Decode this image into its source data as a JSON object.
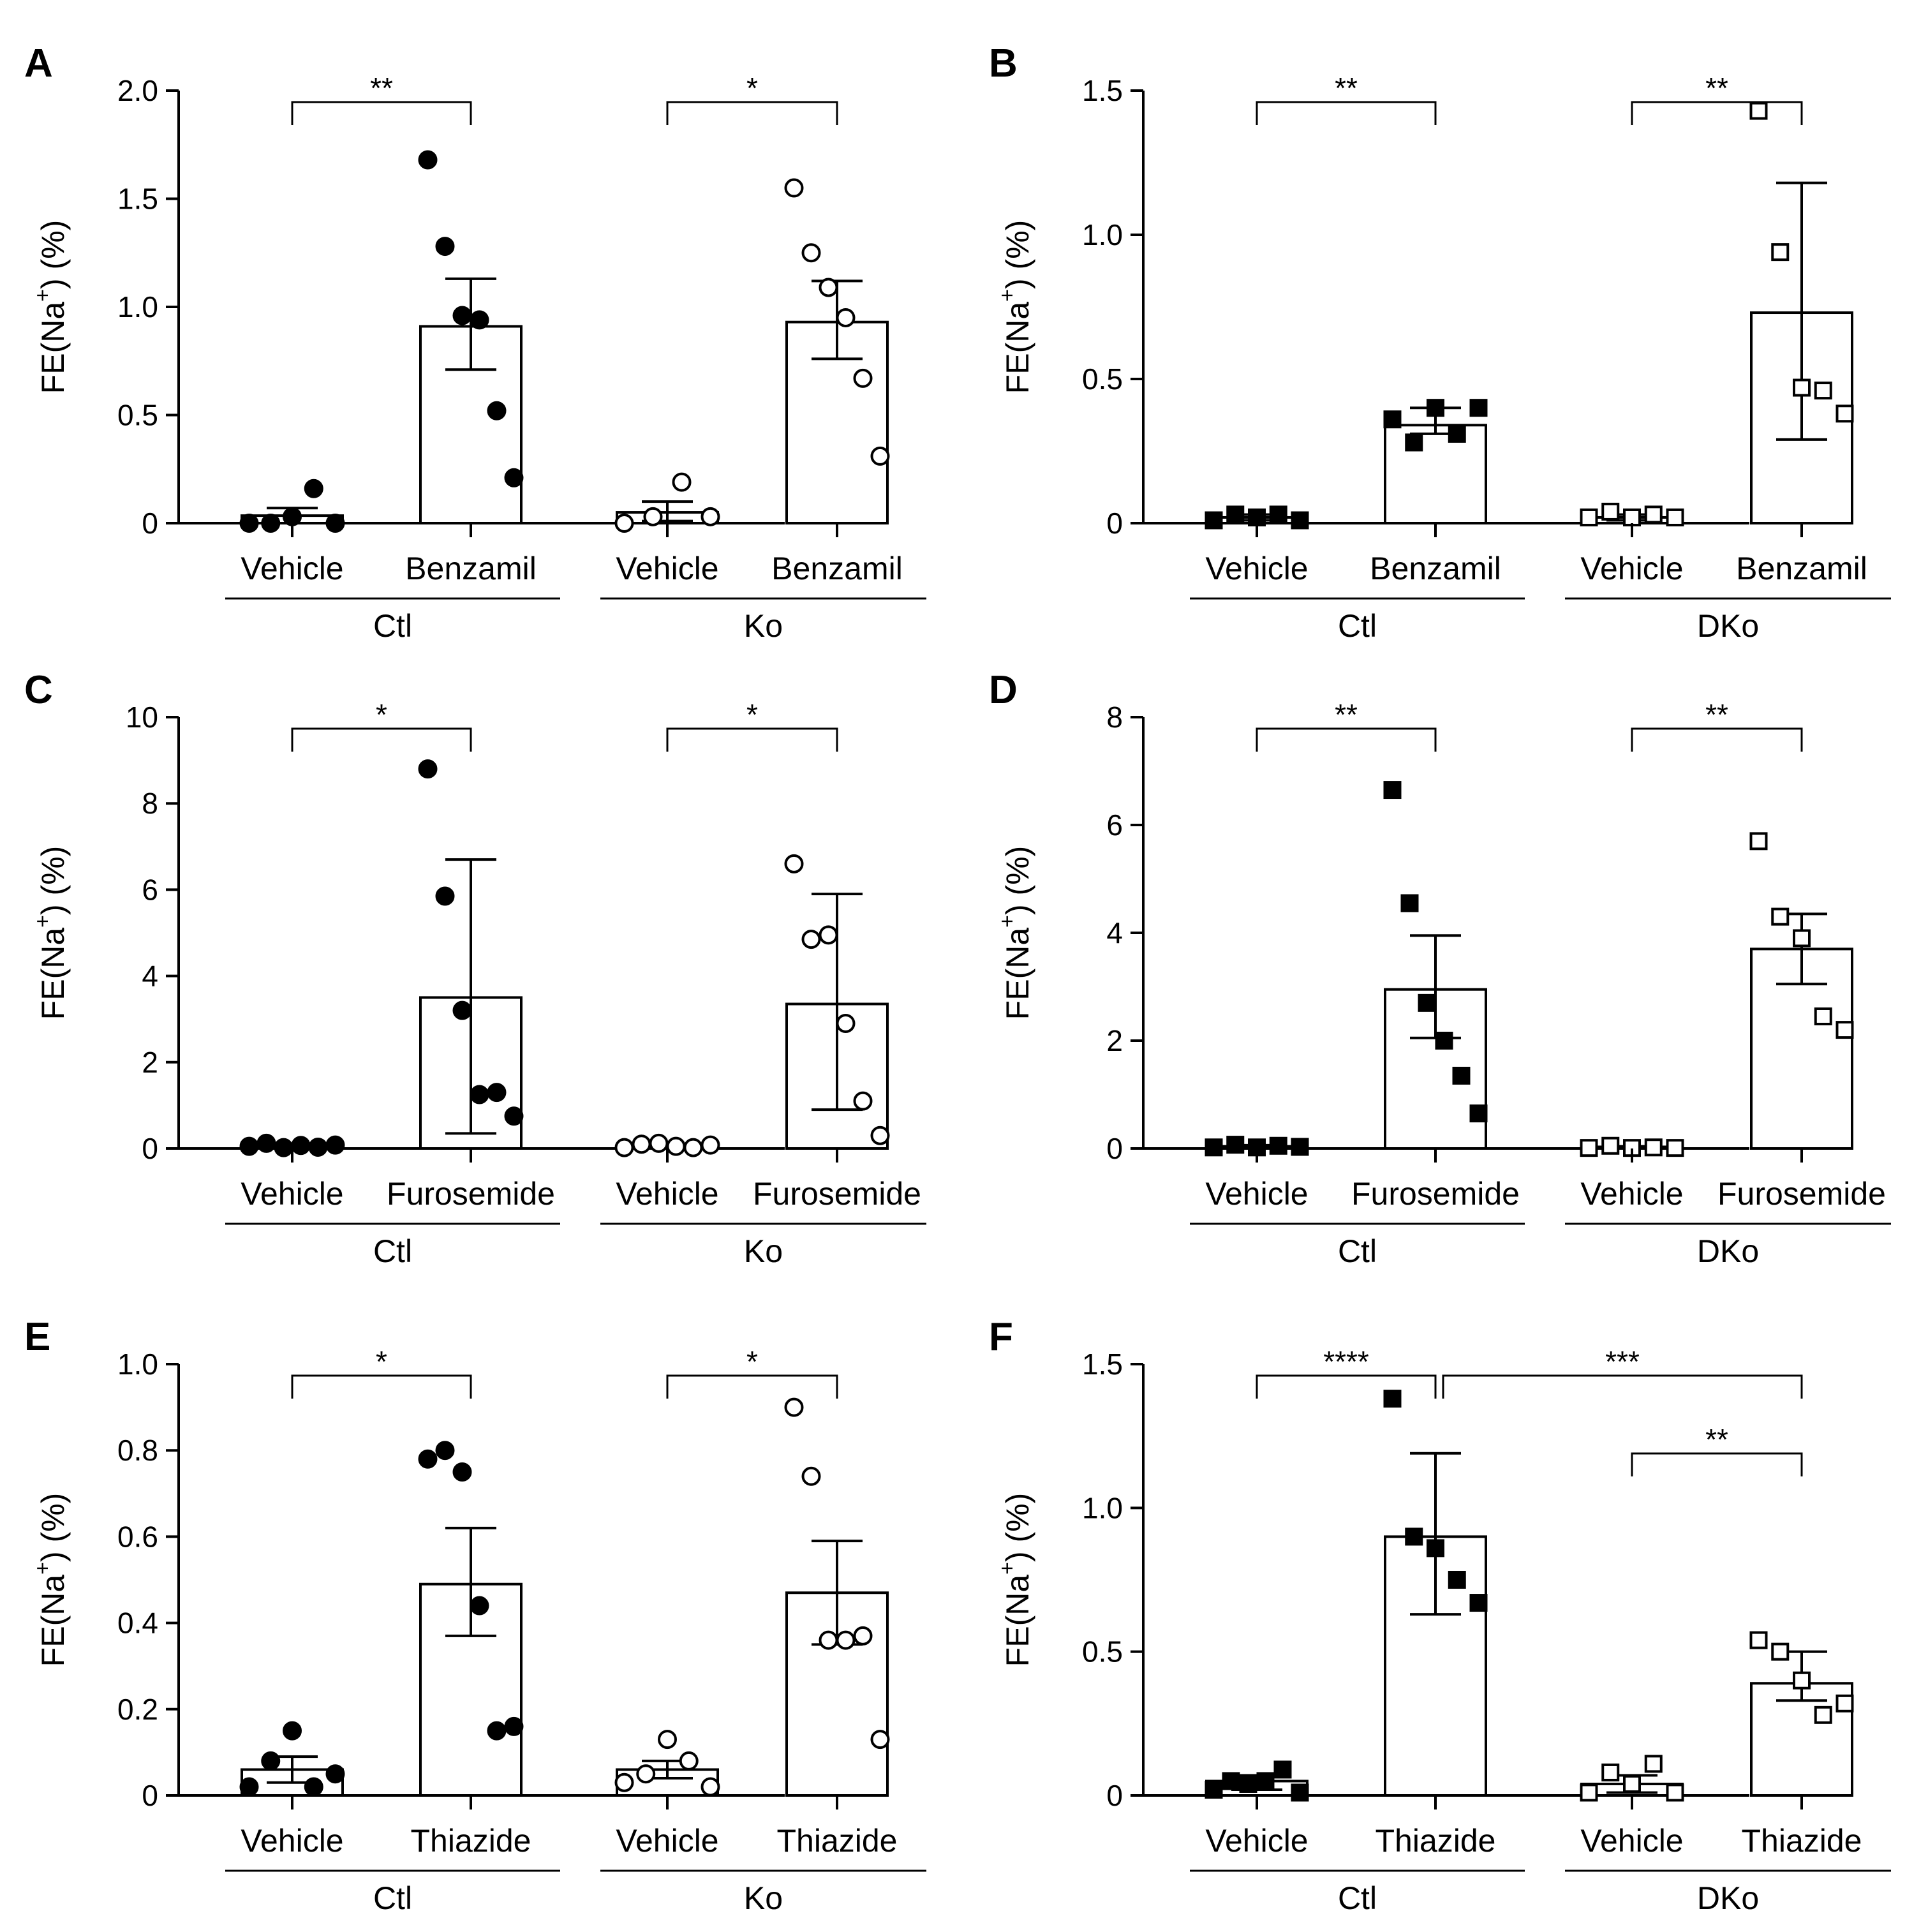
{
  "y_axis_label": {
    "main": "FE(Na",
    "sup": "+",
    "tail": ") (%)"
  },
  "panels": [
    "A",
    "B",
    "C",
    "D",
    "E",
    "F"
  ],
  "chart_data": [
    {
      "panel": "A",
      "type": "bar",
      "ylim": [
        0,
        2.0
      ],
      "yticks": [
        0,
        0.5,
        1.0,
        1.5,
        2.0
      ],
      "tick_labels": [
        "0",
        "0.5",
        "1.0",
        "1.5",
        "2.0"
      ],
      "categories": [
        "Vehicle",
        "Benzamil",
        "Vehicle",
        "Benzamil"
      ],
      "groups": [
        "Ctl",
        "Ko"
      ],
      "marker": [
        "circle-filled",
        "circle-filled",
        "circle-open",
        "circle-open"
      ],
      "bars": [
        {
          "mean": 0.035,
          "sem_low": 0.0,
          "sem_high": 0.07,
          "points": [
            0.0,
            0.0,
            0.03,
            0.16,
            0.0
          ]
        },
        {
          "mean": 0.91,
          "sem_low": 0.71,
          "sem_high": 1.13,
          "points": [
            1.68,
            1.28,
            0.96,
            0.94,
            0.52,
            0.21
          ]
        },
        {
          "mean": 0.05,
          "sem_low": 0.01,
          "sem_high": 0.1,
          "points": [
            0.0,
            0.03,
            0.19,
            0.03
          ]
        },
        {
          "mean": 0.93,
          "sem_low": 0.76,
          "sem_high": 1.12,
          "points": [
            1.55,
            1.25,
            1.09,
            0.95,
            0.67,
            0.31
          ]
        }
      ],
      "brackets": [
        {
          "from": 0,
          "to": 1,
          "label": "**"
        },
        {
          "from": 2,
          "to": 3,
          "label": "*"
        }
      ]
    },
    {
      "panel": "B",
      "type": "bar",
      "ylim": [
        0,
        1.5
      ],
      "yticks": [
        0,
        0.5,
        1.0,
        1.5
      ],
      "tick_labels": [
        "0",
        "0.5",
        "1.0",
        "1.5"
      ],
      "categories": [
        "Vehicle",
        "Benzamil",
        "Vehicle",
        "Benzamil"
      ],
      "groups": [
        "Ctl",
        "DKo"
      ],
      "marker": [
        "square-filled",
        "square-filled",
        "square-open",
        "square-open"
      ],
      "bars": [
        {
          "mean": 0.02,
          "sem_low": 0.01,
          "sem_high": 0.03,
          "points": [
            0.01,
            0.03,
            0.02,
            0.03,
            0.01
          ]
        },
        {
          "mean": 0.34,
          "sem_low": 0.31,
          "sem_high": 0.4,
          "points": [
            0.36,
            0.28,
            0.4,
            0.31,
            0.4
          ]
        },
        {
          "mean": 0.02,
          "sem_low": 0.01,
          "sem_high": 0.03,
          "points": [
            0.02,
            0.04,
            0.02,
            0.03,
            0.02
          ]
        },
        {
          "mean": 0.73,
          "sem_low": 0.29,
          "sem_high": 1.18,
          "points": [
            1.43,
            0.94,
            0.47,
            0.46,
            0.38
          ]
        }
      ],
      "brackets": [
        {
          "from": 0,
          "to": 1,
          "label": "**"
        },
        {
          "from": 2,
          "to": 3,
          "label": "**"
        }
      ]
    },
    {
      "panel": "C",
      "type": "bar",
      "ylim": [
        0,
        10
      ],
      "yticks": [
        0,
        2,
        4,
        6,
        8,
        10
      ],
      "tick_labels": [
        "0",
        "2",
        "4",
        "6",
        "8",
        "10"
      ],
      "categories": [
        "Vehicle",
        "Furosemide",
        "Vehicle",
        "Furosemide"
      ],
      "groups": [
        "Ctl",
        "Ko"
      ],
      "marker": [
        "circle-filled",
        "circle-filled",
        "circle-open",
        "circle-open"
      ],
      "bars": [
        {
          "mean": 0.06,
          "sem_low": 0.03,
          "sem_high": 0.09,
          "points": [
            0.05,
            0.12,
            0.02,
            0.07,
            0.03,
            0.08
          ]
        },
        {
          "mean": 3.5,
          "sem_low": 0.35,
          "sem_high": 6.7,
          "points": [
            8.8,
            5.85,
            3.2,
            1.25,
            1.3,
            0.75
          ]
        },
        {
          "mean": 0.05,
          "sem_low": 0.02,
          "sem_high": 0.08,
          "points": [
            0.02,
            0.1,
            0.12,
            0.05,
            0.02,
            0.08
          ]
        },
        {
          "mean": 3.35,
          "sem_low": 0.9,
          "sem_high": 5.9,
          "points": [
            6.6,
            4.85,
            4.95,
            2.9,
            1.1,
            0.3
          ]
        }
      ],
      "brackets": [
        {
          "from": 0,
          "to": 1,
          "label": "*"
        },
        {
          "from": 2,
          "to": 3,
          "label": "*"
        }
      ]
    },
    {
      "panel": "D",
      "type": "bar",
      "ylim": [
        0,
        8
      ],
      "yticks": [
        0,
        2,
        4,
        6,
        8
      ],
      "tick_labels": [
        "0",
        "2",
        "4",
        "6",
        "8"
      ],
      "categories": [
        "Vehicle",
        "Furosemide",
        "Vehicle",
        "Furosemide"
      ],
      "groups": [
        "Ctl",
        "DKo"
      ],
      "marker": [
        "square-filled",
        "square-filled",
        "square-open",
        "square-open"
      ],
      "bars": [
        {
          "mean": 0.04,
          "sem_low": 0.02,
          "sem_high": 0.06,
          "points": [
            0.02,
            0.07,
            0.02,
            0.05,
            0.03
          ]
        },
        {
          "mean": 2.95,
          "sem_low": 2.05,
          "sem_high": 3.95,
          "points": [
            6.65,
            4.55,
            2.7,
            2.0,
            1.35,
            0.65
          ]
        },
        {
          "mean": 0.03,
          "sem_low": 0.01,
          "sem_high": 0.04,
          "points": [
            0.01,
            0.05,
            0.01,
            0.02,
            0.01
          ]
        },
        {
          "mean": 3.7,
          "sem_low": 3.05,
          "sem_high": 4.35,
          "points": [
            5.7,
            4.3,
            3.9,
            2.45,
            2.2
          ]
        }
      ],
      "brackets": [
        {
          "from": 0,
          "to": 1,
          "label": "**"
        },
        {
          "from": 2,
          "to": 3,
          "label": "**"
        }
      ]
    },
    {
      "panel": "E",
      "type": "bar",
      "ylim": [
        0,
        1.0
      ],
      "yticks": [
        0,
        0.2,
        0.4,
        0.6,
        0.8,
        1.0
      ],
      "tick_labels": [
        "0",
        "0.2",
        "0.4",
        "0.6",
        "0.8",
        "1.0"
      ],
      "categories": [
        "Vehicle",
        "Thiazide",
        "Vehicle",
        "Thiazide"
      ],
      "groups": [
        "Ctl",
        "Ko"
      ],
      "marker": [
        "circle-filled",
        "circle-filled",
        "circle-open",
        "circle-open"
      ],
      "bars": [
        {
          "mean": 0.06,
          "sem_low": 0.03,
          "sem_high": 0.09,
          "points": [
            0.02,
            0.08,
            0.15,
            0.02,
            0.05
          ]
        },
        {
          "mean": 0.49,
          "sem_low": 0.37,
          "sem_high": 0.62,
          "points": [
            0.78,
            0.8,
            0.75,
            0.44,
            0.15,
            0.16
          ]
        },
        {
          "mean": 0.06,
          "sem_low": 0.04,
          "sem_high": 0.08,
          "points": [
            0.03,
            0.05,
            0.13,
            0.08,
            0.02
          ]
        },
        {
          "mean": 0.47,
          "sem_low": 0.35,
          "sem_high": 0.59,
          "points": [
            0.9,
            0.74,
            0.36,
            0.36,
            0.37,
            0.13
          ]
        }
      ],
      "brackets": [
        {
          "from": 0,
          "to": 1,
          "label": "*"
        },
        {
          "from": 2,
          "to": 3,
          "label": "*"
        }
      ]
    },
    {
      "panel": "F",
      "type": "bar",
      "ylim": [
        0,
        1.5
      ],
      "yticks": [
        0,
        0.5,
        1.0,
        1.5
      ],
      "tick_labels": [
        "0",
        "0.5",
        "1.0",
        "1.5"
      ],
      "categories": [
        "Vehicle",
        "Thiazide",
        "Vehicle",
        "Thiazide"
      ],
      "groups": [
        "Ctl",
        "DKo"
      ],
      "marker": [
        "square-filled",
        "square-filled",
        "square-open",
        "square-open"
      ],
      "bars": [
        {
          "mean": 0.05,
          "sem_low": 0.02,
          "sem_high": 0.07,
          "points": [
            0.02,
            0.05,
            0.04,
            0.05,
            0.09,
            0.01
          ]
        },
        {
          "mean": 0.9,
          "sem_low": 0.63,
          "sem_high": 1.19,
          "points": [
            1.38,
            0.9,
            0.86,
            0.75,
            0.67
          ]
        },
        {
          "mean": 0.04,
          "sem_low": 0.01,
          "sem_high": 0.07,
          "points": [
            0.01,
            0.08,
            0.04,
            0.11,
            0.01
          ]
        },
        {
          "mean": 0.39,
          "sem_low": 0.33,
          "sem_high": 0.5,
          "points": [
            0.54,
            0.5,
            0.4,
            0.28,
            0.32
          ]
        }
      ],
      "brackets": [
        {
          "from": 0,
          "to": 1,
          "label": "****",
          "tier": 1
        },
        {
          "from": 1,
          "to": 3,
          "label": "***",
          "tier": 1
        },
        {
          "from": 2,
          "to": 3,
          "label": "**",
          "tier": 2
        }
      ]
    }
  ]
}
